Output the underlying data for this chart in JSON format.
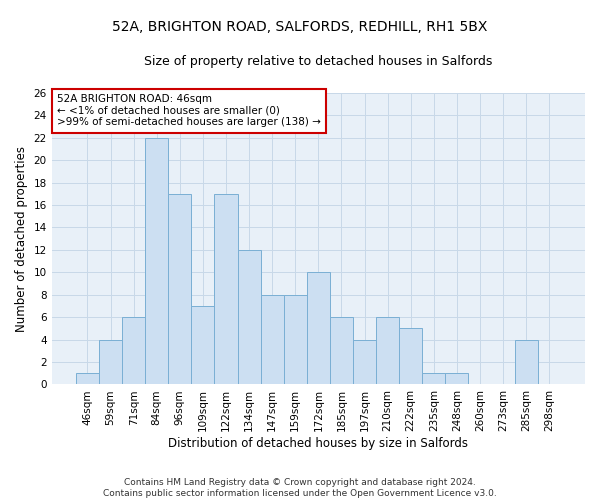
{
  "title": "52A, BRIGHTON ROAD, SALFORDS, REDHILL, RH1 5BX",
  "subtitle": "Size of property relative to detached houses in Salfords",
  "xlabel": "Distribution of detached houses by size in Salfords",
  "ylabel": "Number of detached properties",
  "footer_line1": "Contains HM Land Registry data © Crown copyright and database right 2024.",
  "footer_line2": "Contains public sector information licensed under the Open Government Licence v3.0.",
  "categories": [
    "46sqm",
    "59sqm",
    "71sqm",
    "84sqm",
    "96sqm",
    "109sqm",
    "122sqm",
    "134sqm",
    "147sqm",
    "159sqm",
    "172sqm",
    "185sqm",
    "197sqm",
    "210sqm",
    "222sqm",
    "235sqm",
    "248sqm",
    "260sqm",
    "273sqm",
    "285sqm",
    "298sqm"
  ],
  "values": [
    1,
    4,
    6,
    22,
    17,
    7,
    17,
    12,
    8,
    8,
    10,
    6,
    4,
    6,
    5,
    1,
    1,
    0,
    0,
    4,
    0
  ],
  "bar_color": "#ccdff2",
  "bar_edge_color": "#7aafd4",
  "annotation_title": "52A BRIGHTON ROAD: 46sqm",
  "annotation_line1": "← <1% of detached houses are smaller (0)",
  "annotation_line2": ">99% of semi-detached houses are larger (138) →",
  "annotation_box_color": "#ffffff",
  "annotation_box_edge_color": "#cc0000",
  "ylim_max": 26,
  "yticks": [
    0,
    2,
    4,
    6,
    8,
    10,
    12,
    14,
    16,
    18,
    20,
    22,
    24,
    26
  ],
  "grid_color": "#c8d8e8",
  "background_color": "#e8f0f8",
  "title_fontsize": 10,
  "subtitle_fontsize": 9,
  "xlabel_fontsize": 8.5,
  "ylabel_fontsize": 8.5,
  "tick_fontsize": 7.5,
  "annotation_fontsize": 7.5,
  "footer_fontsize": 6.5
}
